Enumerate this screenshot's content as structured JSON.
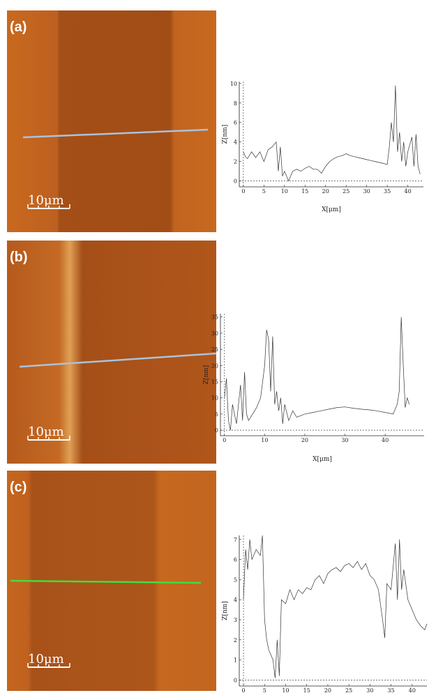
{
  "panels": [
    {
      "label": "(a)",
      "scale_bar": "10μm"
    },
    {
      "label": "(b)",
      "scale_bar": "10μm"
    },
    {
      "label": "(c)",
      "scale_bar": "10μm"
    }
  ],
  "chart_data": [
    {
      "type": "line",
      "xlabel": "X[μm]",
      "ylabel": "Z[nm]",
      "x": [
        0,
        0.5,
        1,
        2,
        3,
        4,
        5,
        6,
        7,
        8,
        8.5,
        9,
        9.5,
        10,
        11,
        12,
        13,
        14,
        15,
        16,
        17,
        18,
        19,
        20,
        21,
        22,
        23,
        24,
        25,
        26,
        27,
        28,
        29,
        30,
        31,
        32,
        33,
        34,
        35,
        35.5,
        36,
        36.5,
        37,
        37.5,
        38,
        38.5,
        39,
        39.5,
        40,
        41,
        41.5,
        42,
        42.5,
        43
      ],
      "series": [
        {
          "name": "profile",
          "color": "#333333",
          "values": [
            3,
            2.5,
            2.3,
            3,
            2.4,
            3,
            2,
            3.2,
            3.5,
            4,
            1,
            3.5,
            0.5,
            1,
            0,
            1,
            1.2,
            1,
            1.3,
            1.5,
            1.2,
            1.2,
            0.8,
            1.5,
            2,
            2.3,
            2.5,
            2.6,
            2.8,
            2.6,
            2.5,
            2.4,
            2.3,
            2.2,
            2.1,
            2,
            1.9,
            1.8,
            1.7,
            3.5,
            6,
            4,
            9.8,
            3,
            5,
            2,
            4,
            1.5,
            3,
            4.5,
            1.5,
            4.8,
            1.5,
            0.7
          ]
        }
      ],
      "xlim": [
        -1,
        43.8
      ],
      "ylim": [
        -0.6,
        10.2
      ],
      "xticks": [
        0,
        5,
        10,
        15,
        20,
        25,
        30,
        35,
        40
      ],
      "yticks": [
        0,
        2,
        4,
        6,
        8,
        10
      ]
    },
    {
      "type": "line",
      "xlabel": "X[μm]",
      "ylabel": "Z[nm]",
      "x": [
        0,
        0.5,
        1,
        1.5,
        2,
        3,
        4,
        4.5,
        5,
        5.5,
        6,
        7,
        8,
        9,
        10,
        10.5,
        11,
        11.5,
        12,
        12.5,
        13,
        13.5,
        14,
        14.5,
        15,
        16,
        17,
        18,
        20,
        22,
        24,
        26,
        28,
        30,
        32,
        34,
        36,
        38,
        40,
        42,
        43,
        43.5,
        44,
        44.5,
        45,
        45.5,
        46
      ],
      "series": [
        {
          "name": "profile",
          "color": "#333333",
          "values": [
            10,
            16,
            3,
            0,
            8,
            2,
            14,
            3,
            18,
            5,
            3,
            5,
            7,
            10,
            20,
            31,
            28,
            12,
            29,
            8,
            12,
            6,
            10,
            2,
            8,
            3,
            6,
            4,
            5,
            5.5,
            6,
            6.5,
            7,
            7.2,
            6.8,
            6.5,
            6.3,
            6,
            5.5,
            5,
            8,
            12,
            35,
            20,
            7,
            10,
            8
          ]
        }
      ],
      "xlim": [
        -1,
        49.7
      ],
      "ylim": [
        -1.7,
        36
      ],
      "xticks": [
        0,
        10,
        20,
        30,
        40
      ],
      "yticks": [
        0,
        5,
        10,
        15,
        20,
        25,
        30,
        35
      ]
    },
    {
      "type": "line",
      "xlabel": "X[μm]",
      "ylabel": "Z[nm]",
      "x": [
        0,
        0.5,
        1,
        1.5,
        2,
        3,
        4,
        4.5,
        5,
        5.5,
        6,
        7,
        7.5,
        8,
        8.5,
        9,
        10,
        11,
        12,
        13,
        14,
        15,
        16,
        17,
        18,
        19,
        20,
        21,
        22,
        23,
        24,
        25,
        26,
        27,
        28,
        29,
        30,
        31,
        32,
        33,
        33.5,
        34,
        35,
        36,
        36.5,
        37,
        37.5,
        38,
        39,
        40,
        41,
        42,
        43,
        43.5
      ],
      "series": [
        {
          "name": "profile",
          "color": "#333333",
          "values": [
            4,
            6.5,
            5.5,
            7,
            6,
            6.5,
            6.2,
            7.2,
            3,
            2,
            1.5,
            1,
            0.1,
            2,
            0.2,
            4,
            3.8,
            4.5,
            4,
            4.5,
            4.3,
            4.6,
            4.5,
            5,
            5.2,
            4.8,
            5.3,
            5.5,
            5.6,
            5.4,
            5.7,
            5.8,
            5.6,
            5.9,
            5.5,
            5.8,
            5.2,
            5,
            4.5,
            3,
            2.1,
            4.8,
            4.5,
            6.8,
            4,
            7,
            4.5,
            5.5,
            4,
            3.5,
            3,
            2.7,
            2.5,
            2.8
          ]
        }
      ],
      "xlim": [
        -1,
        43.5
      ],
      "ylim": [
        -0.3,
        7.2
      ],
      "xticks": [
        0,
        5,
        10,
        15,
        20,
        25,
        30,
        35,
        40
      ],
      "yticks": [
        0,
        1,
        2,
        3,
        4,
        5,
        6,
        7
      ]
    }
  ]
}
